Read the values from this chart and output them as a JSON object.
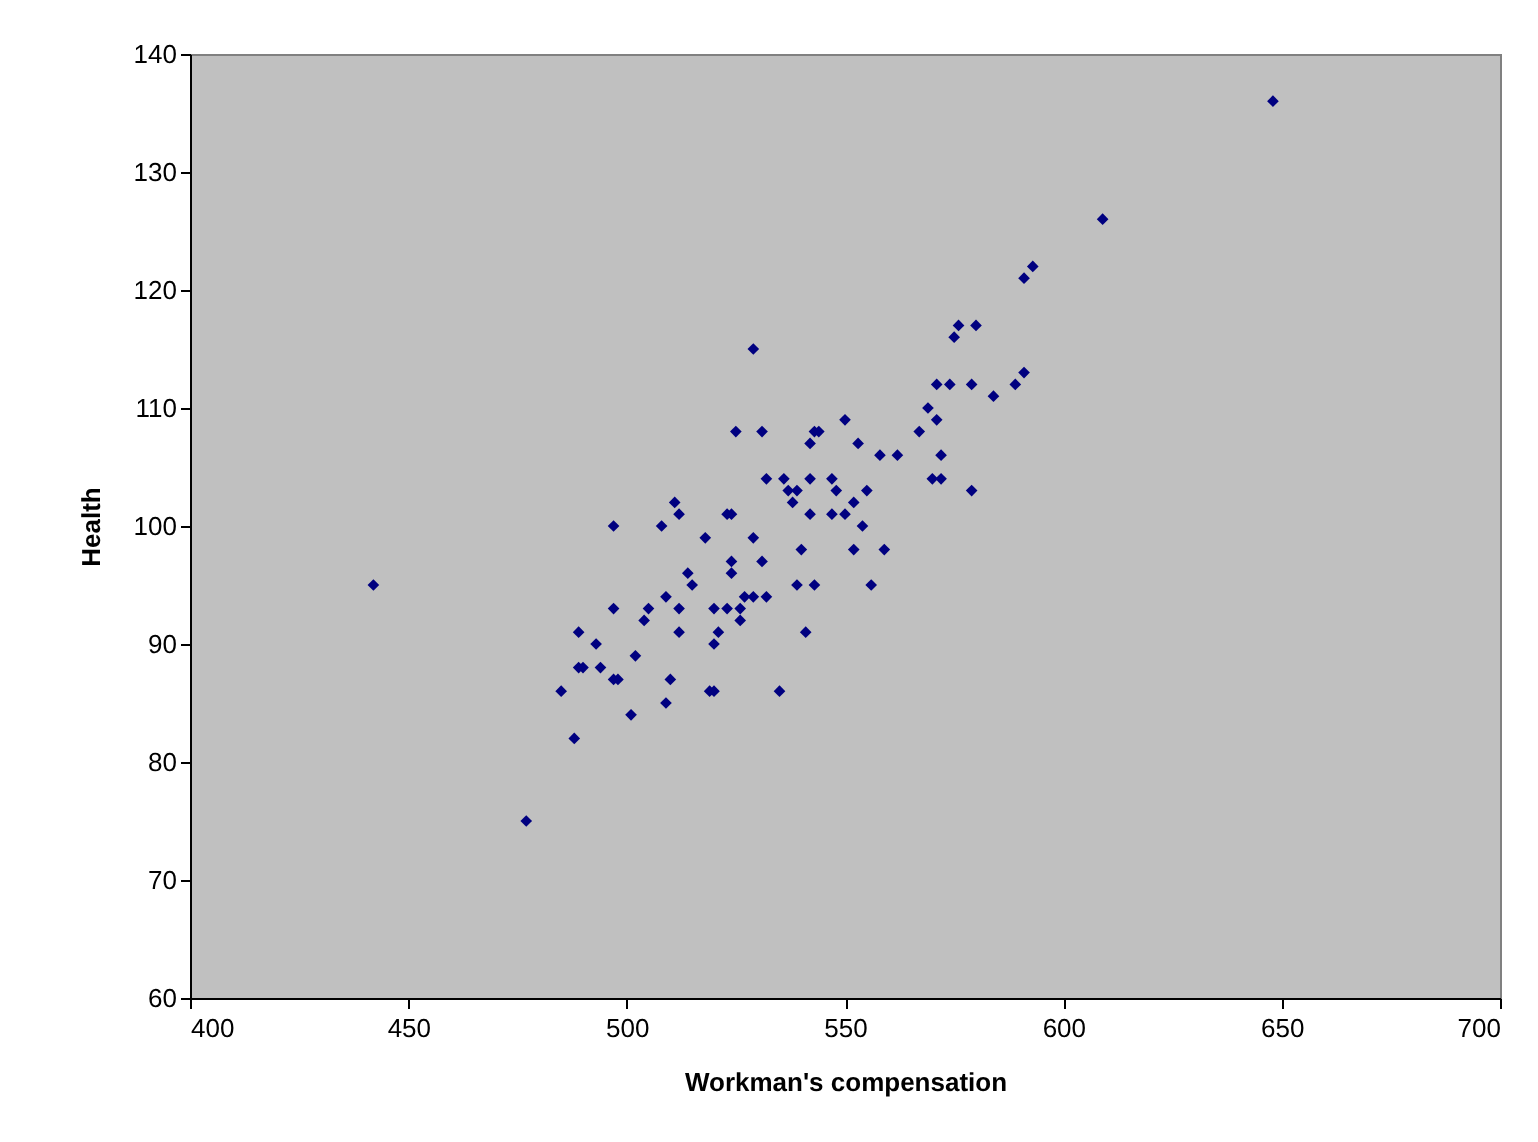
{
  "chart_data": {
    "type": "scatter",
    "xlabel": "Workman's compensation",
    "ylabel": "Health",
    "x": [
      609,
      593,
      591,
      576,
      580,
      575,
      571,
      574,
      579,
      584,
      589,
      591,
      569,
      571,
      567,
      550,
      553,
      558,
      562,
      572,
      570,
      572,
      579,
      555,
      552,
      550,
      529,
      525,
      531,
      543,
      544,
      542,
      532,
      536,
      542,
      547,
      537,
      539,
      548,
      538,
      542,
      547,
      554,
      540,
      552,
      559,
      556,
      539,
      543,
      497,
      508,
      511,
      512,
      523,
      524,
      518,
      529,
      514,
      515,
      524,
      524,
      531,
      509,
      527,
      529,
      532,
      497,
      505,
      512,
      520,
      523,
      526,
      504,
      526,
      489,
      512,
      521,
      541,
      493,
      520,
      502,
      489,
      490,
      494,
      497,
      498,
      510,
      485,
      519,
      520,
      535,
      509,
      501,
      488,
      477,
      442,
      648
    ],
    "values": [
      126,
      122,
      121,
      117,
      117,
      116,
      112,
      112,
      112,
      111,
      112,
      113,
      110,
      109,
      108,
      109,
      107,
      106,
      106,
      106,
      104,
      104,
      103,
      103,
      102,
      101,
      115,
      108,
      108,
      108,
      108,
      107,
      104,
      104,
      104,
      104,
      103,
      103,
      103,
      102,
      101,
      101,
      100,
      98,
      98,
      98,
      95,
      95,
      95,
      100,
      100,
      102,
      101,
      101,
      101,
      99,
      99,
      96,
      95,
      97,
      96,
      97,
      94,
      94,
      94,
      94,
      93,
      93,
      93,
      93,
      93,
      93,
      92,
      92,
      91,
      91,
      91,
      91,
      90,
      90,
      89,
      88,
      88,
      88,
      87,
      87,
      87,
      86,
      86,
      86,
      86,
      85,
      84,
      82,
      75,
      95,
      136
    ],
    "color": "#000080",
    "marker": "diamond",
    "grid": false,
    "legend": false,
    "xlim": [
      400,
      700
    ],
    "xticks": [
      400,
      450,
      500,
      550,
      600,
      650,
      700
    ],
    "ylim": [
      60,
      140
    ],
    "yticks": [
      60,
      70,
      80,
      90,
      100,
      110,
      120,
      130,
      140
    ]
  }
}
